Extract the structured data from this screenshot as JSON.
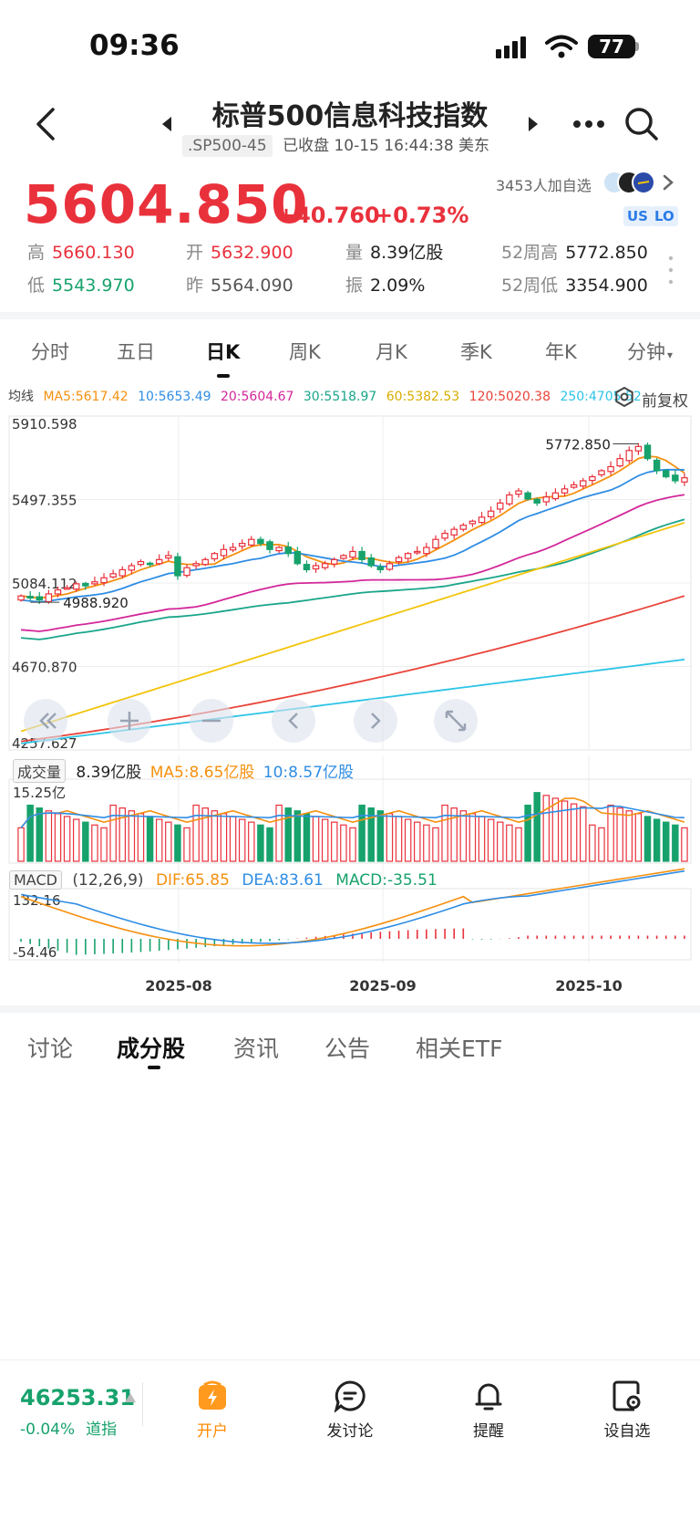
{
  "status_bar": {
    "time": "09:36",
    "battery": "77"
  },
  "header": {
    "title": "标普500信息科技指数",
    "code": ".SP500-45",
    "status": "已收盘 10-15 16:44:38 美东"
  },
  "quote": {
    "price": "5604.850",
    "change": "+40.760",
    "change_pct": "+0.73%",
    "watchers": "3453人加自选",
    "tag_us": "US",
    "tag_lo": "LO",
    "stats": [
      {
        "label": "高",
        "value": "5660.130",
        "color": "#e9313c"
      },
      {
        "label": "开",
        "value": "5632.900",
        "color": "#e9313c"
      },
      {
        "label": "量",
        "value": "8.39亿股",
        "color": "#222222"
      },
      {
        "label": "52周高",
        "value": "5772.850",
        "color": "#222222"
      },
      {
        "label": "低",
        "value": "5543.970",
        "color": "#17a26c"
      },
      {
        "label": "昨",
        "value": "5564.090",
        "color": "#555555"
      },
      {
        "label": "振",
        "value": "2.09%",
        "color": "#222222"
      },
      {
        "label": "52周低",
        "value": "3354.900",
        "color": "#222222"
      }
    ]
  },
  "period_tabs": [
    "分时",
    "五日",
    "日K",
    "周K",
    "月K",
    "季K",
    "年K",
    "分钟"
  ],
  "active_period": "日K",
  "ma_legend": {
    "label": "均线",
    "items": [
      {
        "text": "MA5:5617.42",
        "color": "#f5900f"
      },
      {
        "text": "10:5653.49",
        "color": "#2f8de4"
      },
      {
        "text": "20:5604.67",
        "color": "#d3279a"
      },
      {
        "text": "30:5518.97",
        "color": "#19a58a"
      },
      {
        "text": "60:5382.53",
        "color": "#f2c40b"
      },
      {
        "text": "120:5020.38",
        "color": "#e8443a"
      },
      {
        "text": "250:4705.52",
        "color": "#2cc4e6"
      }
    ],
    "adjust": "前复权"
  },
  "chart_labels": {
    "y_ticks": [
      "5910.598",
      "5497.355",
      "5084.112",
      "4670.870",
      "4257.627"
    ],
    "high_marker": "5772.850",
    "low_marker": "4988.920",
    "volume_label": "成交量",
    "volume_value": "8.39亿股",
    "volume_ma5": "MA5:8.65亿股",
    "volume_ma10": "10:8.57亿股",
    "volume_max": "15.25亿",
    "macd_label": "MACD",
    "macd_params": "(12,26,9)",
    "dif": "DIF:65.85",
    "dea": "DEA:83.61",
    "macd": "MACD:-35.51",
    "macd_max": "132.16",
    "macd_min": "-54.46",
    "x_ticks": [
      "2025-08",
      "2025-09",
      "2025-10"
    ]
  },
  "chart_data": {
    "type": "candlestick",
    "ylim": [
      4257.627,
      5910.598
    ],
    "y_ticks": [
      5910.598,
      5497.355,
      5084.112,
      4670.87,
      4257.627
    ],
    "closes": [
      5020,
      5010,
      5000,
      5030,
      5050,
      5060,
      5080,
      5070,
      5090,
      5110,
      5130,
      5150,
      5170,
      5190,
      5180,
      5200,
      5220,
      5120,
      5160,
      5180,
      5200,
      5230,
      5250,
      5260,
      5280,
      5300,
      5280,
      5250,
      5260,
      5230,
      5180,
      5150,
      5170,
      5180,
      5200,
      5220,
      5240,
      5200,
      5170,
      5150,
      5180,
      5210,
      5230,
      5240,
      5260,
      5300,
      5330,
      5350,
      5370,
      5390,
      5410,
      5440,
      5480,
      5520,
      5540,
      5500,
      5480,
      5510,
      5530,
      5550,
      5570,
      5590,
      5610,
      5640,
      5660,
      5700,
      5740,
      5760,
      5700,
      5640,
      5610,
      5590,
      5605
    ],
    "ma_last": {
      "MA5": 5617.42,
      "MA10": 5653.49,
      "MA20": 5604.67,
      "MA30": 5518.97,
      "MA60": 5382.53,
      "MA120": 5020.38,
      "MA250": 4705.52
    },
    "high_52w": 5772.85,
    "low_marker": 4988.92,
    "volume_max": 15.25,
    "macd_range": [
      -54.46,
      132.16
    ],
    "x_ticks": [
      "2025-08",
      "2025-09",
      "2025-10"
    ]
  },
  "bottom_tabs": [
    "讨论",
    "成分股",
    "资讯",
    "公告",
    "相关ETF"
  ],
  "active_bottom_tab": "成分股",
  "footer": {
    "index_value": "46253.31",
    "index_change": "-0.04%",
    "index_name": "道指",
    "buttons": [
      "开户",
      "发讨论",
      "提醒",
      "设自选"
    ]
  }
}
